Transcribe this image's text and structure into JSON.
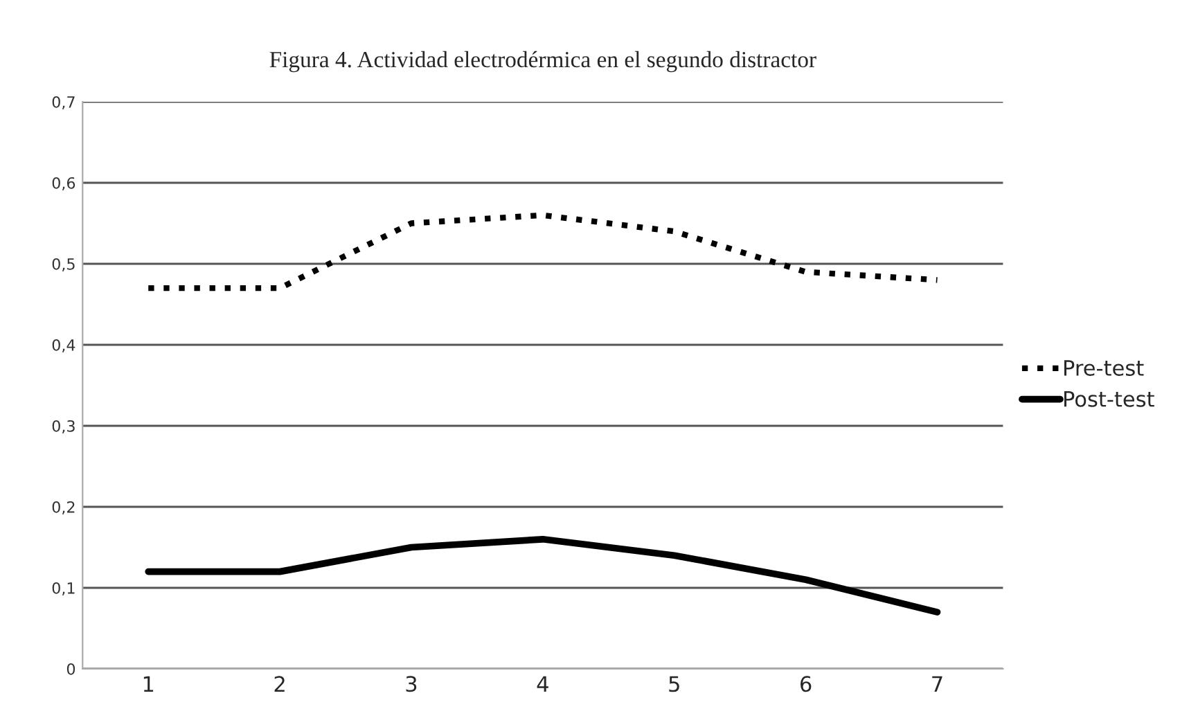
{
  "chart_data": {
    "type": "line",
    "title": "Figura 4. Actividad electrodérmica en el segundo distractor",
    "categories": [
      "1",
      "2",
      "3",
      "4",
      "5",
      "6",
      "7"
    ],
    "series": [
      {
        "name": "Pre-test",
        "color": "#000000",
        "line_style": "dotted",
        "values": [
          0.47,
          0.47,
          0.55,
          0.56,
          0.54,
          0.49,
          0.48
        ]
      },
      {
        "name": "Post-test",
        "color": "#000000",
        "line_style": "solid",
        "values": [
          0.12,
          0.12,
          0.15,
          0.16,
          0.14,
          0.11,
          0.07
        ]
      }
    ],
    "ylim": [
      0,
      0.7
    ],
    "yticks": [
      0,
      {
        "value": 0.1,
        "label": "0,1"
      },
      {
        "value": 0.2,
        "label": "0,2"
      },
      {
        "value": 0.3,
        "label": "0,3"
      },
      {
        "value": 0.4,
        "label": "0,4"
      },
      {
        "value": 0.5,
        "label": "0,5"
      },
      {
        "value": 0.6,
        "label": "0,6"
      },
      {
        "value": 0.7,
        "label": "0,7"
      }
    ],
    "grid": "y",
    "legend": "right",
    "marker": "none"
  }
}
